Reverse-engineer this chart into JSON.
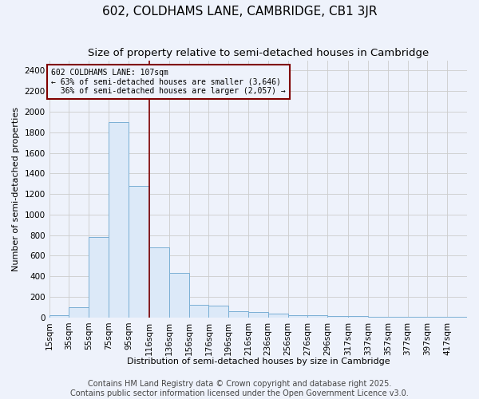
{
  "title": "602, COLDHAMS LANE, CAMBRIDGE, CB1 3JR",
  "subtitle": "Size of property relative to semi-detached houses in Cambridge",
  "xlabel": "Distribution of semi-detached houses by size in Cambridge",
  "ylabel": "Number of semi-detached properties",
  "property_label": "602 COLDHAMS LANE: 107sqm",
  "pct_smaller": 63,
  "n_smaller": 3646,
  "pct_larger": 36,
  "n_larger": 2057,
  "bin_labels": [
    "15sqm",
    "35sqm",
    "55sqm",
    "75sqm",
    "95sqm",
    "116sqm",
    "136sqm",
    "156sqm",
    "176sqm",
    "196sqm",
    "216sqm",
    "236sqm",
    "256sqm",
    "276sqm",
    "296sqm",
    "317sqm",
    "337sqm",
    "357sqm",
    "377sqm",
    "397sqm",
    "417sqm"
  ],
  "bin_edges": [
    15,
    35,
    55,
    75,
    95,
    116,
    136,
    156,
    176,
    196,
    216,
    236,
    256,
    276,
    296,
    317,
    337,
    357,
    377,
    397,
    417,
    437
  ],
  "bar_heights": [
    20,
    100,
    780,
    1900,
    1275,
    680,
    435,
    120,
    115,
    60,
    50,
    35,
    20,
    20,
    10,
    10,
    5,
    5,
    3,
    3,
    2
  ],
  "bar_color": "#dce9f8",
  "bar_edge_color": "#7aafd4",
  "vline_x": 116,
  "vline_color": "#800000",
  "annotation_box_color": "#800000",
  "background_color": "#eef2fb",
  "ylim": [
    0,
    2500
  ],
  "yticks": [
    0,
    200,
    400,
    600,
    800,
    1000,
    1200,
    1400,
    1600,
    1800,
    2000,
    2200,
    2400
  ],
  "grid_color": "#cccccc",
  "title_fontsize": 11,
  "subtitle_fontsize": 9.5,
  "axis_fontsize": 8,
  "tick_fontsize": 7.5,
  "footer_fontsize": 7,
  "footer": "Contains HM Land Registry data © Crown copyright and database right 2025.\nContains public sector information licensed under the Open Government Licence v3.0."
}
